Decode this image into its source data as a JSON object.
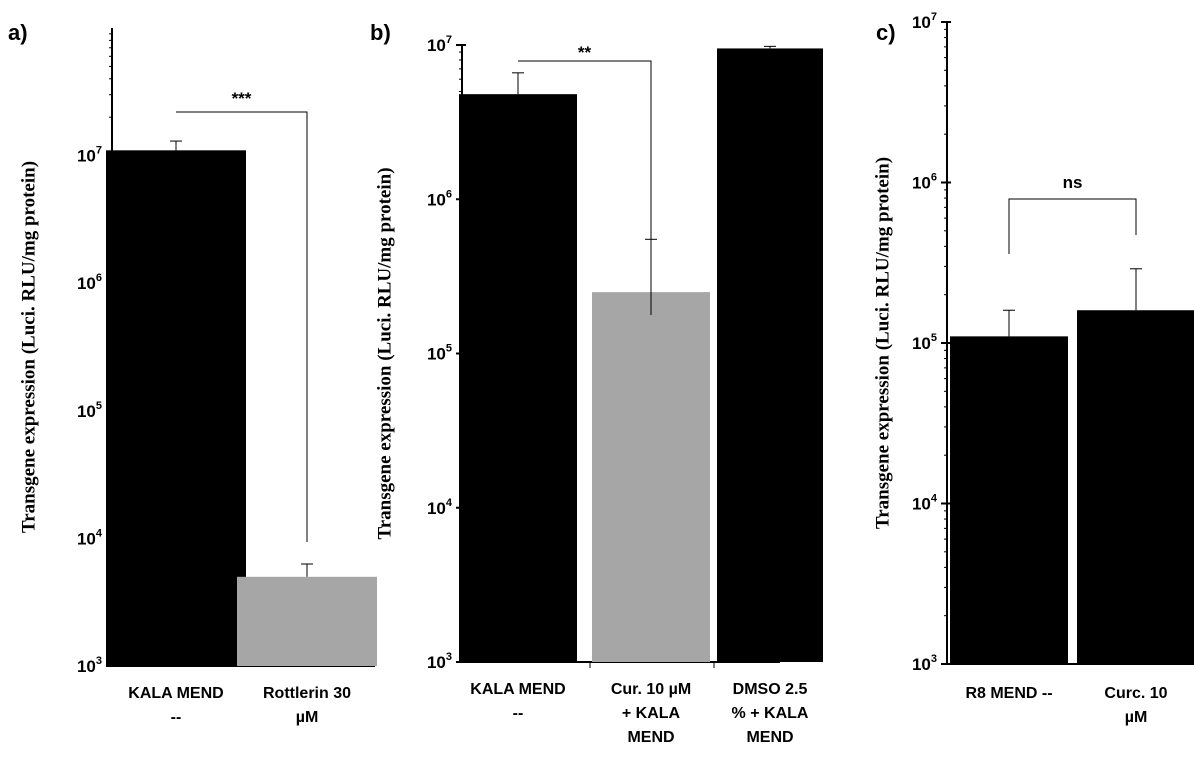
{
  "chart_data": [
    {
      "panel": "a)",
      "type": "bar",
      "scale": "log",
      "ylabel": "Transgene expression (Luci.  RLU/mg protein)",
      "ylim": [
        1000,
        100000000
      ],
      "yticks": [
        1000,
        10000,
        100000,
        1000000,
        10000000
      ],
      "categories": [
        [
          "KALA MEND",
          "--"
        ],
        [
          "Rottlerin 30",
          "µM"
        ]
      ],
      "values": [
        11000000,
        5000
      ],
      "errors": [
        2000000,
        1300
      ],
      "colors": [
        "#000000",
        "#a6a6a6"
      ],
      "significance": [
        {
          "from": 0,
          "to": 1,
          "label": "***"
        }
      ]
    },
    {
      "panel": "b)",
      "type": "bar",
      "scale": "log",
      "ylabel": "Transgene expression (Luci.  RLU/mg protein)",
      "ylim": [
        1000,
        10000000
      ],
      "yticks": [
        1000,
        10000,
        100000,
        1000000,
        10000000
      ],
      "categories": [
        [
          "KALA MEND",
          "--"
        ],
        [
          "Cur. 10 µM",
          "+ KALA",
          "MEND"
        ],
        [
          "DMSO 2.5",
          "% + KALA",
          "MEND"
        ]
      ],
      "values": [
        4800000,
        250000,
        9500000
      ],
      "errors": [
        1800000,
        300000,
        300000
      ],
      "colors": [
        "#000000",
        "#a6a6a6",
        "#000000"
      ],
      "significance": [
        {
          "from": 0,
          "to": 1,
          "label": "**"
        }
      ]
    },
    {
      "panel": "c)",
      "type": "bar",
      "scale": "log",
      "ylabel": "Transgene expression (Luci.  RLU/mg protein)",
      "ylim": [
        1000,
        10000000
      ],
      "yticks": [
        1000,
        10000,
        100000,
        1000000,
        10000000
      ],
      "categories": [
        [
          "R8 MEND --"
        ],
        [
          "Curc. 10",
          "µM"
        ]
      ],
      "values": [
        110000,
        160000
      ],
      "errors": [
        50000,
        130000
      ],
      "colors": [
        "#000000",
        "#000000"
      ],
      "significance": [
        {
          "from": 0,
          "to": 1,
          "label": "ns"
        }
      ]
    }
  ]
}
